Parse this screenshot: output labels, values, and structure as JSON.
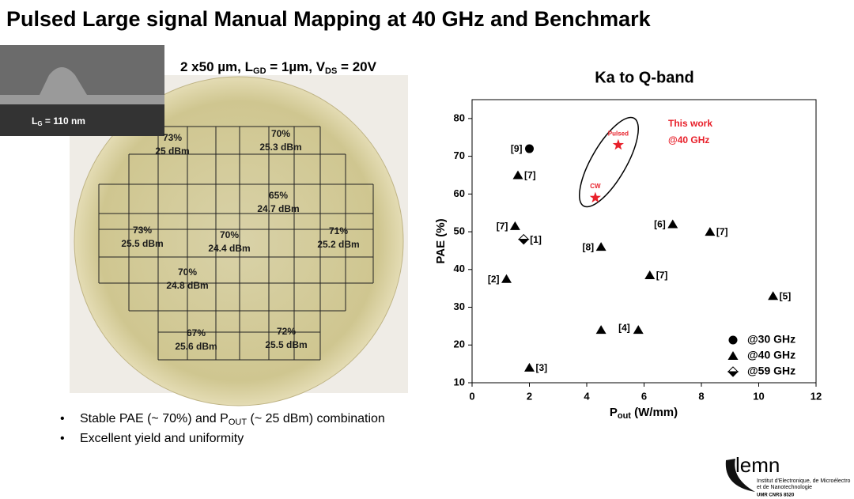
{
  "slide": {
    "title": "Pulsed Large signal Manual Mapping at 40 GHz and Benchmark",
    "device": [
      "2 x50 µm, L",
      "GD",
      " = 1µm, V",
      "DS",
      " = 20V"
    ],
    "sem_label": [
      "L",
      "G",
      " = 110 nm"
    ],
    "wafer_labels": [
      {
        "pae": "73%",
        "pout": "25 dBm"
      },
      {
        "pae": "70%",
        "pout": "25.3 dBm"
      },
      {
        "pae": "65%",
        "pout": "24.7 dBm"
      },
      {
        "pae": "73%",
        "pout": "25.5 dBm"
      },
      {
        "pae": "70%",
        "pout": "24.4 dBm"
      },
      {
        "pae": "71%",
        "pout": "25.2 dBm"
      },
      {
        "pae": "70%",
        "pout": "24.8 dBm"
      },
      {
        "pae": "67%",
        "pout": "25.6 dBm"
      },
      {
        "pae": "72%",
        "pout": "25.5 dBm"
      }
    ],
    "bullets": [
      [
        "Stable PAE (~ 70%) and P",
        "OUT",
        " (~ 25 dBm) combination"
      ],
      [
        "Excellent yield and uniformity"
      ]
    ],
    "logo": {
      "name": "lemn",
      "lines": [
        "Institut d'Electronique, de Microélectro",
        "et de Nanotechnologie",
        "UMR CNRS 8520"
      ]
    }
  },
  "chart_data": {
    "type": "scatter",
    "title": "Ka to Q-band",
    "xlabel": [
      "P",
      "out",
      " (W/mm)"
    ],
    "ylabel": "PAE (%)",
    "xlim": [
      0,
      12
    ],
    "xticks": [
      0,
      2,
      4,
      6,
      8,
      10,
      12
    ],
    "ylim": [
      10,
      85
    ],
    "yticks": [
      10,
      20,
      30,
      40,
      50,
      60,
      70,
      80
    ],
    "series": [
      {
        "name": "@30 GHz",
        "marker": "circle",
        "color": "#000000",
        "x": [
          2.0
        ],
        "values": [
          72
        ],
        "point_labels": [
          "[9]"
        ]
      },
      {
        "name": "@40 GHz",
        "marker": "triangle",
        "color": "#000000",
        "x": [
          1.6,
          1.5,
          1.2,
          2.0,
          4.5,
          4.5,
          5.8,
          6.2,
          7.0,
          8.3,
          10.5
        ],
        "values": [
          65,
          51.5,
          37.5,
          14,
          46,
          24,
          24,
          38.5,
          52,
          50,
          33
        ],
        "point_labels": [
          "[7]",
          "[7]",
          "[2]",
          "[3]",
          "[8]",
          "[4]",
          null,
          "[7]",
          "[6]",
          "[7]",
          "[5]"
        ]
      },
      {
        "name": "@59 GHz",
        "marker": "diamond",
        "color": "#000000",
        "x": [
          1.8
        ],
        "values": [
          48
        ],
        "point_labels": [
          "[1]"
        ]
      }
    ],
    "highlight": {
      "marker": "star",
      "color": "#e8202a",
      "x": [
        5.1,
        4.3
      ],
      "values": [
        73,
        59
      ],
      "point_labels": [
        "Pulsed",
        "CW"
      ]
    },
    "annotations": [
      "This work",
      "@40 GHz"
    ]
  }
}
